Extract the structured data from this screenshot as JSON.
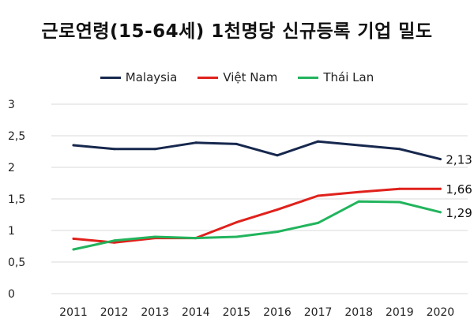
{
  "chart_data": {
    "type": "line",
    "title": "근로연령(15-64세) 1천명당 신규등록 기업 밀도",
    "xlabel": "",
    "ylabel": "",
    "categories": [
      "2011",
      "2012",
      "2013",
      "2014",
      "2015",
      "2016",
      "2017",
      "2018",
      "2019",
      "2020"
    ],
    "ylim": [
      0,
      3
    ],
    "yticks": [
      0,
      0.5,
      1,
      1.5,
      2,
      2.5,
      3
    ],
    "ytick_labels": [
      "0",
      "0,5",
      "1",
      "1,5",
      "2",
      "2,5",
      "3"
    ],
    "grid": true,
    "legend_position": "top-center",
    "series": [
      {
        "name": "Malaysia",
        "color": "#17284e",
        "values": [
          2.35,
          2.29,
          2.29,
          2.39,
          2.37,
          2.19,
          2.41,
          2.35,
          2.29,
          2.13
        ],
        "end_label": "2,13"
      },
      {
        "name": "Việt Nam",
        "color": "#e0211c",
        "values": [
          0.87,
          0.81,
          0.88,
          0.88,
          1.13,
          1.33,
          1.55,
          1.61,
          1.66,
          1.66
        ],
        "end_label": "1,66"
      },
      {
        "name": "Thái Lan",
        "color": "#22b45d",
        "values": [
          0.7,
          0.84,
          0.9,
          0.88,
          0.9,
          0.98,
          1.12,
          1.46,
          1.45,
          1.29
        ],
        "end_label": "1,29"
      }
    ]
  }
}
